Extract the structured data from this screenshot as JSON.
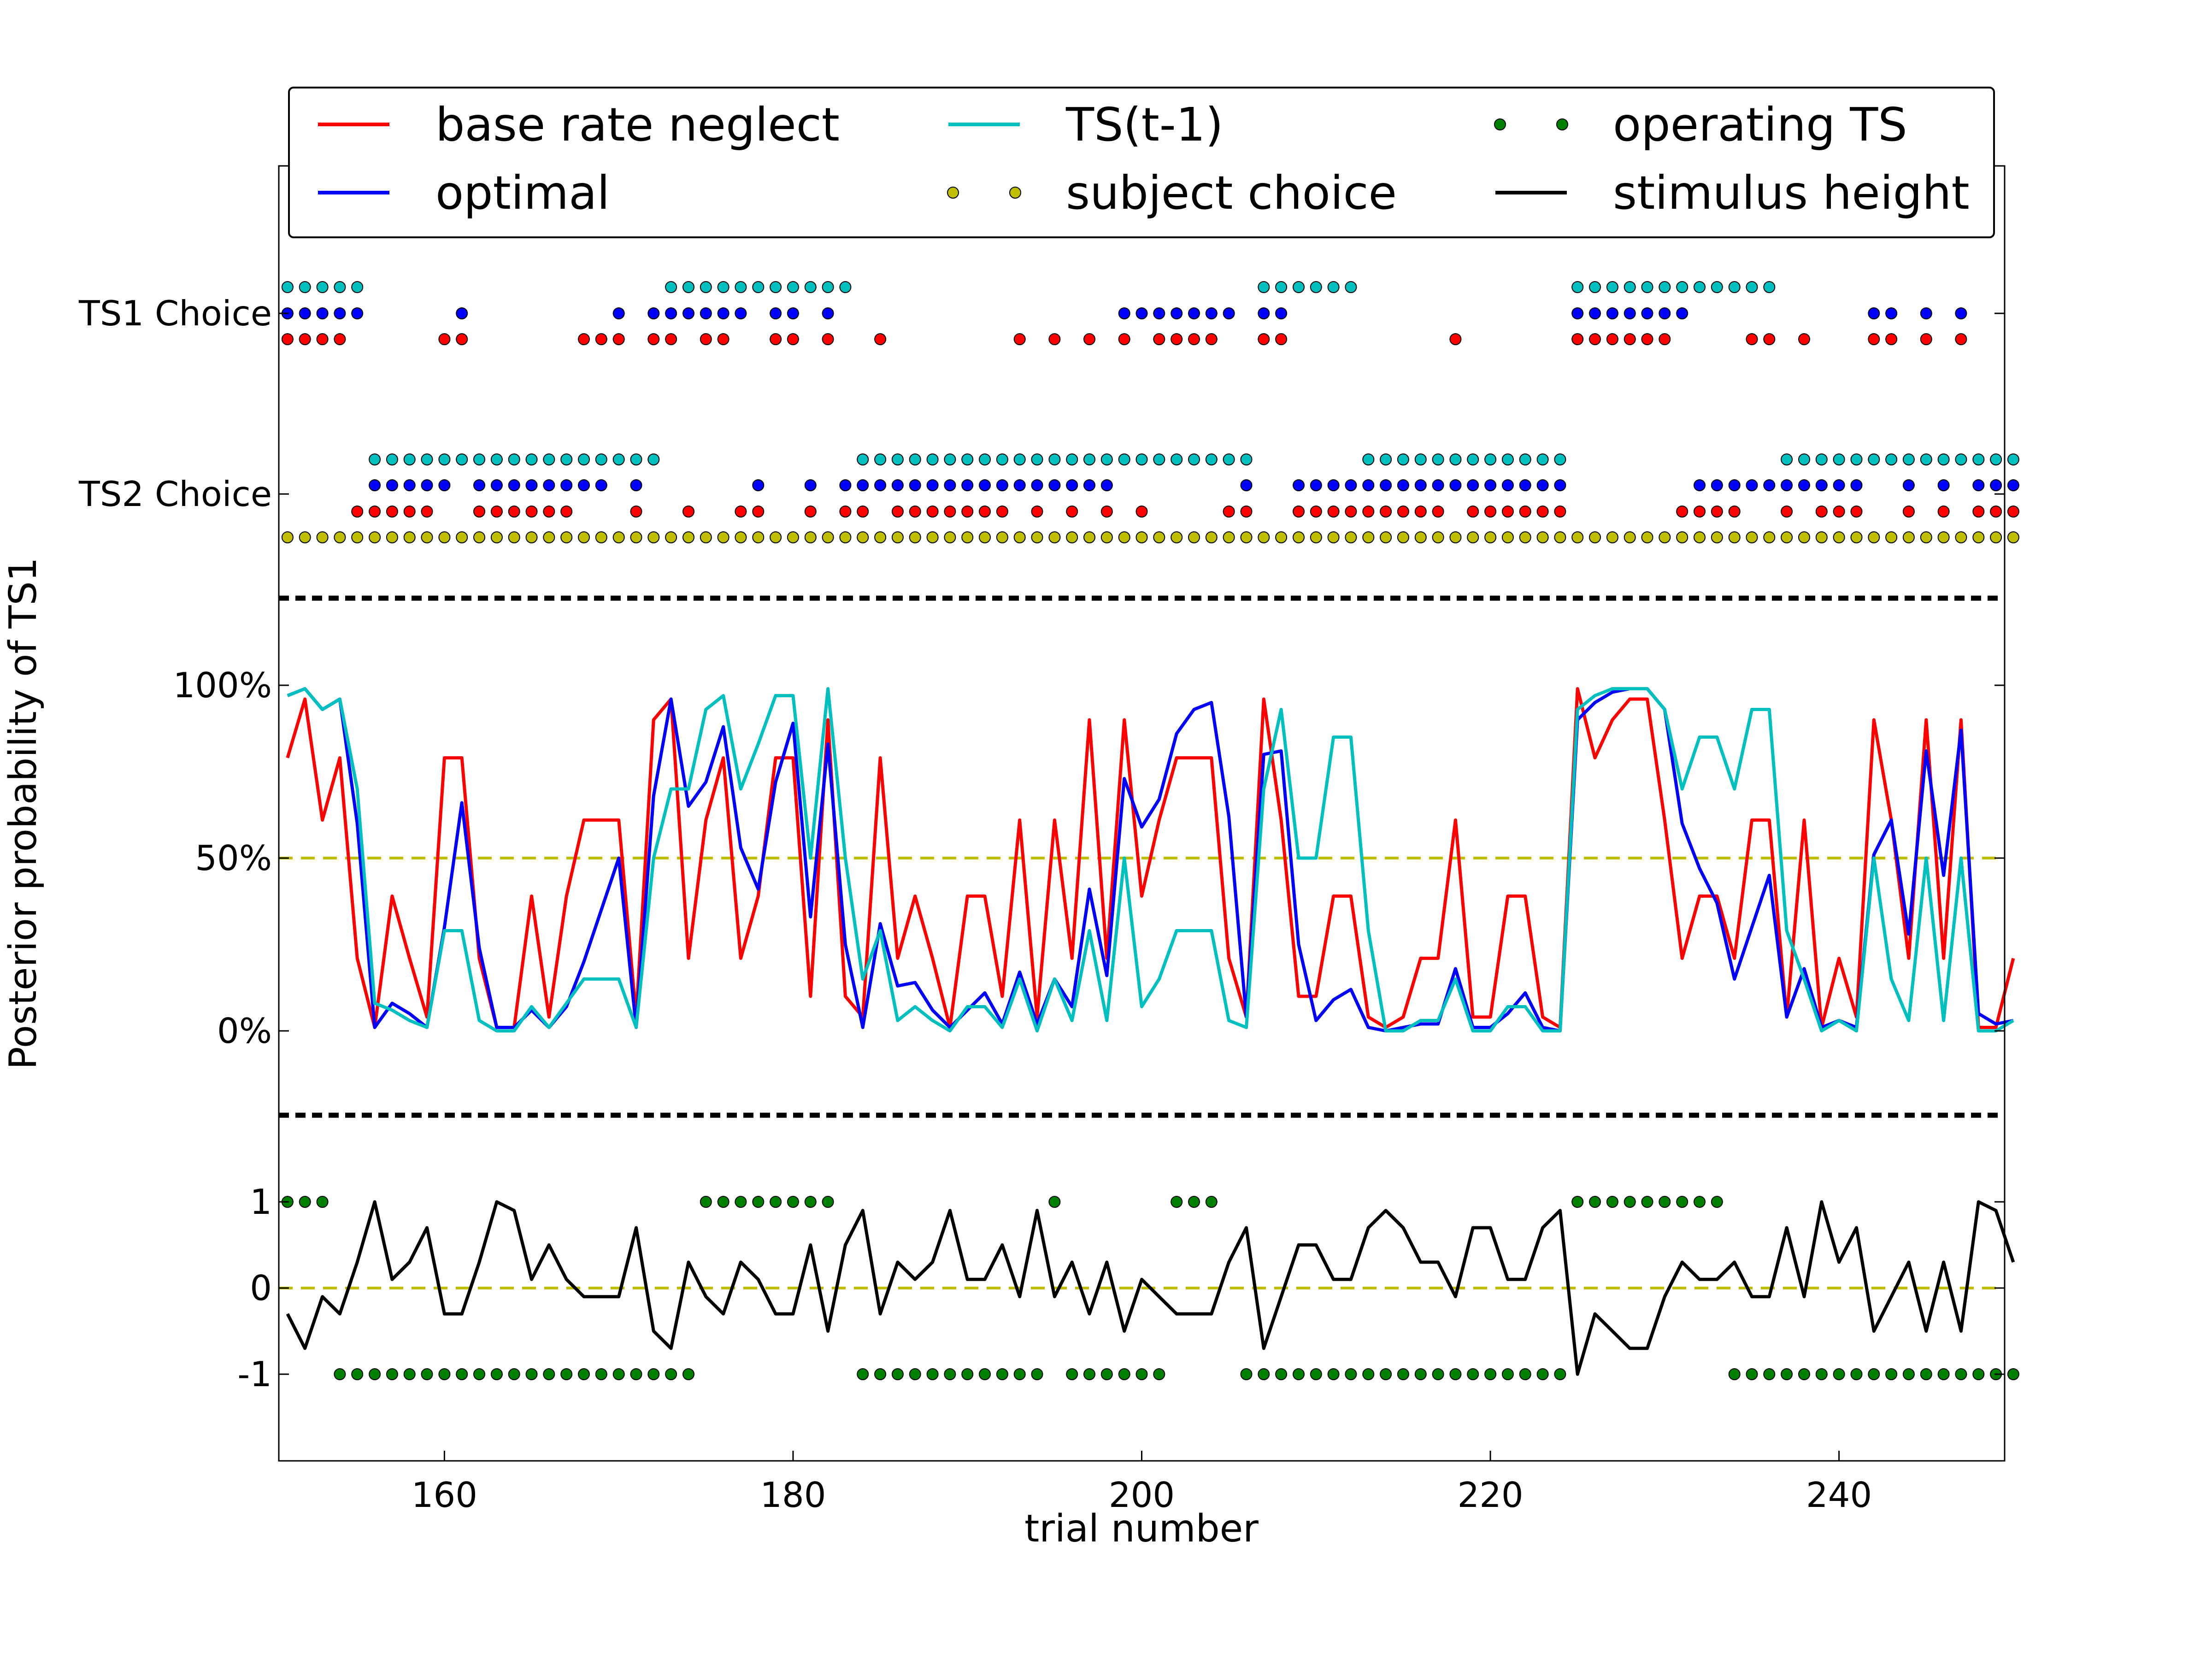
{
  "chart_data": {
    "type": "line",
    "xlabel": "trial number",
    "ylabel": "Posterior probability of TS1",
    "xlim": [
      150.5,
      249.5
    ],
    "x_ticks": [
      160,
      180,
      200,
      220,
      240
    ],
    "choice_labels": [
      "TS1 Choice",
      "TS2 Choice"
    ],
    "prob_ticks": [
      "0%",
      "50%",
      "100%"
    ],
    "stim_ticks": [
      "1",
      "0",
      "-1"
    ],
    "legend": [
      {
        "label": "base rate neglect",
        "color": "#ff0000",
        "kind": "line"
      },
      {
        "label": "optimal",
        "color": "#0000ff",
        "kind": "line"
      },
      {
        "label": "TS(t-1)",
        "color": "#00bfbf",
        "kind": "line"
      },
      {
        "label": "subject choice",
        "color": "#bfbf00",
        "kind": "dot"
      },
      {
        "label": "operating TS",
        "color": "#008000",
        "kind": "dot"
      },
      {
        "label": "stimulus height",
        "color": "#000000",
        "kind": "line"
      }
    ],
    "x": [
      151,
      152,
      153,
      154,
      155,
      156,
      157,
      158,
      159,
      160,
      161,
      162,
      163,
      164,
      165,
      166,
      167,
      168,
      169,
      170,
      171,
      172,
      173,
      174,
      175,
      176,
      177,
      178,
      179,
      180,
      181,
      182,
      183,
      184,
      185,
      186,
      187,
      188,
      189,
      190,
      191,
      192,
      193,
      194,
      195,
      196,
      197,
      198,
      199,
      200,
      201,
      202,
      203,
      204,
      205,
      206,
      207,
      208,
      209,
      210,
      211,
      212,
      213,
      214,
      215,
      216,
      217,
      218,
      219,
      220,
      221,
      222,
      223,
      224,
      225,
      226,
      227,
      228,
      229,
      230,
      231,
      232,
      233,
      234,
      235,
      236,
      237,
      238,
      239,
      240,
      241,
      242,
      243,
      244,
      245,
      246,
      247,
      248,
      249,
      250
    ],
    "series": [
      {
        "name": "base rate neglect",
        "color": "#ff0000",
        "values": [
          0.79,
          0.96,
          0.61,
          0.79,
          0.21,
          0.01,
          0.39,
          0.21,
          0.04,
          0.79,
          0.79,
          0.21,
          0.01,
          0.01,
          0.39,
          0.04,
          0.39,
          0.61,
          0.61,
          0.61,
          0.04,
          0.9,
          0.96,
          0.21,
          0.61,
          0.79,
          0.21,
          0.39,
          0.79,
          0.79,
          0.1,
          0.9,
          0.1,
          0.04,
          0.79,
          0.21,
          0.39,
          0.21,
          0.01,
          0.39,
          0.39,
          0.1,
          0.61,
          0.04,
          0.61,
          0.21,
          0.9,
          0.21,
          0.9,
          0.39,
          0.61,
          0.79,
          0.79,
          0.79,
          0.21,
          0.04,
          0.96,
          0.61,
          0.1,
          0.1,
          0.39,
          0.39,
          0.04,
          0.01,
          0.04,
          0.21,
          0.21,
          0.61,
          0.04,
          0.04,
          0.39,
          0.39,
          0.04,
          0.01,
          0.99,
          0.79,
          0.9,
          0.96,
          0.96,
          0.61,
          0.21,
          0.39,
          0.39,
          0.21,
          0.61,
          0.61,
          0.04,
          0.61,
          0.01,
          0.21,
          0.04,
          0.9,
          0.61,
          0.21,
          0.9,
          0.21,
          0.9,
          0.01,
          0.01,
          0.21
        ]
      },
      {
        "name": "optimal",
        "color": "#0000ff",
        "values": [
          0.97,
          0.99,
          0.93,
          0.96,
          0.6,
          0.01,
          0.08,
          0.05,
          0.01,
          0.3,
          0.66,
          0.24,
          0.01,
          0.01,
          0.06,
          0.01,
          0.07,
          0.2,
          0.35,
          0.5,
          0.01,
          0.68,
          0.96,
          0.65,
          0.72,
          0.88,
          0.53,
          0.41,
          0.72,
          0.89,
          0.33,
          0.83,
          0.25,
          0.01,
          0.31,
          0.13,
          0.14,
          0.06,
          0.01,
          0.06,
          0.11,
          0.02,
          0.17,
          0.02,
          0.15,
          0.07,
          0.41,
          0.16,
          0.73,
          0.59,
          0.67,
          0.86,
          0.93,
          0.95,
          0.62,
          0.04,
          0.8,
          0.81,
          0.25,
          0.03,
          0.09,
          0.12,
          0.01,
          0.0,
          0.01,
          0.02,
          0.02,
          0.18,
          0.01,
          0.01,
          0.05,
          0.11,
          0.01,
          0.0,
          0.9,
          0.95,
          0.98,
          0.99,
          0.99,
          0.93,
          0.6,
          0.47,
          0.37,
          0.15,
          0.3,
          0.45,
          0.04,
          0.18,
          0.01,
          0.03,
          0.01,
          0.51,
          0.61,
          0.28,
          0.81,
          0.45,
          0.87,
          0.05,
          0.02,
          0.03
        ]
      },
      {
        "name": "TS(t-1)",
        "color": "#00bfbf",
        "values": [
          0.97,
          0.99,
          0.93,
          0.96,
          0.7,
          0.08,
          0.06,
          0.03,
          0.01,
          0.29,
          0.29,
          0.03,
          0.0,
          0.0,
          0.07,
          0.01,
          0.08,
          0.15,
          0.15,
          0.15,
          0.01,
          0.5,
          0.7,
          0.7,
          0.93,
          0.97,
          0.7,
          0.83,
          0.97,
          0.97,
          0.5,
          0.99,
          0.5,
          0.15,
          0.29,
          0.03,
          0.07,
          0.03,
          0.0,
          0.07,
          0.07,
          0.01,
          0.15,
          0.0,
          0.15,
          0.03,
          0.29,
          0.03,
          0.5,
          0.07,
          0.15,
          0.29,
          0.29,
          0.29,
          0.03,
          0.01,
          0.7,
          0.93,
          0.5,
          0.5,
          0.85,
          0.85,
          0.29,
          0.0,
          0.0,
          0.03,
          0.03,
          0.15,
          0.0,
          0.0,
          0.07,
          0.07,
          0.0,
          0.0,
          0.93,
          0.97,
          0.99,
          0.99,
          0.99,
          0.93,
          0.7,
          0.85,
          0.85,
          0.7,
          0.93,
          0.93,
          0.29,
          0.15,
          0.0,
          0.03,
          0.0,
          0.5,
          0.15,
          0.03,
          0.5,
          0.03,
          0.5,
          0.0,
          0.0,
          0.03
        ]
      },
      {
        "name": "stimulus height",
        "color": "#000000",
        "values": [
          -0.3,
          -0.7,
          -0.1,
          -0.3,
          0.3,
          1.0,
          0.1,
          0.3,
          0.7,
          -0.3,
          -0.3,
          0.3,
          1.0,
          0.9,
          0.1,
          0.5,
          0.1,
          -0.1,
          -0.1,
          -0.1,
          0.7,
          -0.5,
          -0.7,
          0.3,
          -0.1,
          -0.3,
          0.3,
          0.1,
          -0.3,
          -0.3,
          0.5,
          -0.5,
          0.5,
          0.9,
          -0.3,
          0.3,
          0.1,
          0.3,
          0.9,
          0.1,
          0.1,
          0.5,
          -0.1,
          0.9,
          -0.1,
          0.3,
          -0.3,
          0.3,
          -0.5,
          0.1,
          -0.1,
          -0.3,
          -0.3,
          -0.3,
          0.3,
          0.7,
          -0.7,
          -0.1,
          0.5,
          0.5,
          0.1,
          0.1,
          0.7,
          0.9,
          0.7,
          0.3,
          0.3,
          -0.1,
          0.7,
          0.7,
          0.1,
          0.1,
          0.7,
          0.9,
          -1.0,
          -0.3,
          -0.5,
          -0.7,
          -0.7,
          -0.1,
          0.3,
          0.1,
          0.1,
          0.3,
          -0.1,
          -0.1,
          0.7,
          -0.1,
          1.0,
          0.3,
          0.7,
          -0.5,
          -0.1,
          0.3,
          -0.5,
          0.3,
          -0.5,
          1.0,
          0.9,
          0.3
        ]
      }
    ],
    "dot_series": [
      {
        "name": "TS(t-1)",
        "color": "#00bfbf",
        "values": [
          1,
          1,
          1,
          1,
          1,
          2,
          2,
          2,
          2,
          2,
          2,
          2,
          2,
          2,
          2,
          2,
          2,
          2,
          2,
          2,
          2,
          2,
          1,
          1,
          1,
          1,
          1,
          1,
          1,
          1,
          1,
          1,
          1,
          2,
          2,
          2,
          2,
          2,
          2,
          2,
          2,
          2,
          2,
          2,
          2,
          2,
          2,
          2,
          2,
          2,
          2,
          2,
          2,
          2,
          2,
          2,
          1,
          1,
          1,
          1,
          1,
          1,
          2,
          2,
          2,
          2,
          2,
          2,
          2,
          2,
          2,
          2,
          2,
          2,
          1,
          1,
          1,
          1,
          1,
          1,
          1,
          1,
          1,
          1,
          1,
          1,
          2,
          2,
          2,
          2,
          2,
          2,
          2,
          2,
          2,
          2,
          2,
          2,
          2,
          2
        ]
      },
      {
        "name": "optimal",
        "color": "#0000ff",
        "values": [
          1,
          1,
          1,
          1,
          1,
          2,
          2,
          2,
          2,
          2,
          1,
          2,
          2,
          2,
          2,
          2,
          2,
          2,
          2,
          1,
          2,
          1,
          1,
          1,
          1,
          1,
          1,
          2,
          1,
          1,
          2,
          1,
          2,
          2,
          2,
          2,
          2,
          2,
          2,
          2,
          2,
          2,
          2,
          2,
          2,
          2,
          2,
          2,
          1,
          1,
          1,
          1,
          1,
          1,
          1,
          2,
          1,
          1,
          2,
          2,
          2,
          2,
          2,
          2,
          2,
          2,
          2,
          2,
          2,
          2,
          2,
          2,
          2,
          2,
          1,
          1,
          1,
          1,
          1,
          1,
          1,
          2,
          2,
          2,
          2,
          2,
          2,
          2,
          2,
          2,
          2,
          1,
          1,
          2,
          1,
          2,
          1,
          2,
          2,
          2
        ]
      },
      {
        "name": "base rate neglect",
        "color": "#ff0000",
        "values": [
          1,
          1,
          1,
          1,
          2,
          2,
          2,
          2,
          2,
          1,
          1,
          2,
          2,
          2,
          2,
          2,
          2,
          1,
          1,
          1,
          2,
          1,
          1,
          2,
          1,
          1,
          2,
          2,
          1,
          1,
          2,
          1,
          2,
          2,
          1,
          2,
          2,
          2,
          2,
          2,
          2,
          2,
          1,
          2,
          1,
          2,
          1,
          2,
          1,
          2,
          1,
          1,
          1,
          1,
          2,
          2,
          1,
          1,
          2,
          2,
          2,
          2,
          2,
          2,
          2,
          2,
          2,
          1,
          2,
          2,
          2,
          2,
          2,
          2,
          1,
          1,
          1,
          1,
          1,
          1,
          2,
          2,
          2,
          2,
          1,
          1,
          2,
          1,
          2,
          2,
          2,
          1,
          1,
          2,
          1,
          2,
          1,
          2,
          2,
          2
        ]
      },
      {
        "name": "subject choice",
        "color": "#bfbf00",
        "values": [
          2,
          2,
          2,
          2,
          2,
          2,
          2,
          2,
          2,
          2,
          2,
          2,
          2,
          2,
          2,
          2,
          2,
          2,
          2,
          2,
          2,
          2,
          2,
          2,
          2,
          2,
          2,
          2,
          2,
          2,
          2,
          2,
          2,
          2,
          2,
          2,
          2,
          2,
          2,
          2,
          2,
          2,
          2,
          2,
          2,
          2,
          2,
          2,
          2,
          2,
          2,
          2,
          2,
          2,
          2,
          2,
          2,
          2,
          2,
          2,
          2,
          2,
          2,
          2,
          2,
          2,
          2,
          2,
          2,
          2,
          2,
          2,
          2,
          2,
          2,
          2,
          2,
          2,
          2,
          2,
          2,
          2,
          2,
          2,
          2,
          2,
          2,
          2,
          2,
          2,
          2,
          2,
          2,
          2,
          2,
          2,
          2,
          2,
          2,
          2
        ]
      },
      {
        "name": "operating TS",
        "color": "#008000",
        "values": [
          1,
          1,
          1,
          -1,
          -1,
          -1,
          -1,
          -1,
          -1,
          -1,
          -1,
          -1,
          -1,
          -1,
          -1,
          -1,
          -1,
          -1,
          -1,
          -1,
          -1,
          -1,
          -1,
          -1,
          1,
          1,
          1,
          1,
          1,
          1,
          1,
          1,
          0,
          -1,
          -1,
          -1,
          -1,
          -1,
          -1,
          -1,
          -1,
          -1,
          -1,
          -1,
          1,
          -1,
          -1,
          -1,
          -1,
          -1,
          -1,
          1,
          1,
          1,
          0,
          -1,
          -1,
          -1,
          -1,
          -1,
          -1,
          -1,
          -1,
          -1,
          -1,
          -1,
          -1,
          -1,
          -1,
          -1,
          -1,
          -1,
          -1,
          -1,
          1,
          1,
          1,
          1,
          1,
          1,
          1,
          1,
          1,
          -1,
          -1,
          -1,
          -1,
          -1,
          -1,
          -1,
          -1,
          -1,
          -1,
          -1,
          -1,
          -1,
          -1,
          -1,
          -1,
          -1
        ]
      }
    ],
    "reference_lines": {
      "prob_50": 0.5,
      "stim_zero": 0
    }
  }
}
